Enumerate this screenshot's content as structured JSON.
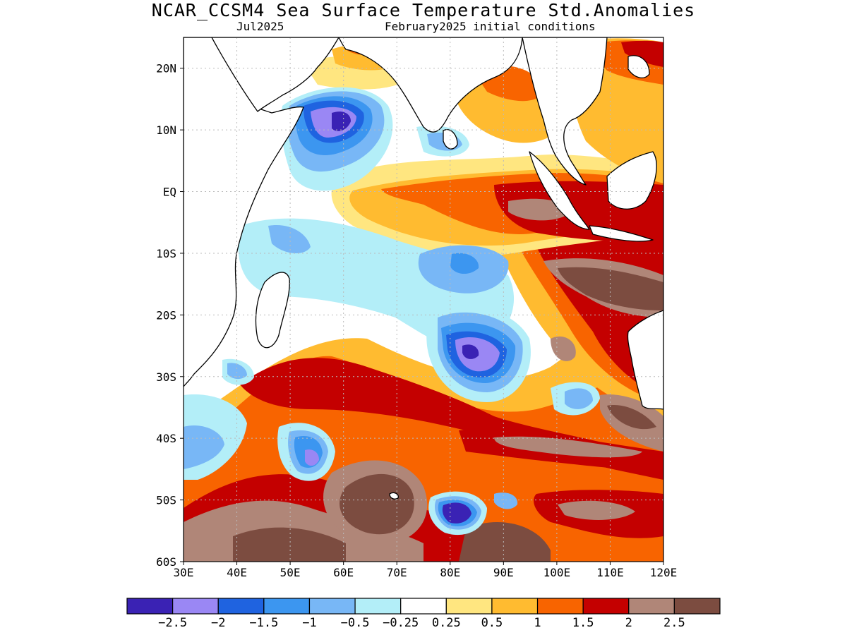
{
  "title": "NCAR_CCSM4 Sea Surface Temperature Std.Anomalies",
  "subtitle_left": "Jul2025",
  "subtitle_right": "February2025 initial conditions",
  "map": {
    "lon_labels": [
      "30E",
      "40E",
      "50E",
      "60E",
      "70E",
      "80E",
      "90E",
      "100E",
      "110E",
      "120E"
    ],
    "lat_labels": [
      "20N",
      "10N",
      "EQ",
      "10S",
      "20S",
      "30S",
      "40S",
      "50S",
      "60S"
    ]
  },
  "colorbar": {
    "colors": [
      "#3a22b4",
      "#9a87f4",
      "#1f63e0",
      "#3c96f0",
      "#78b7f6",
      "#b3eef8",
      "#ffffff",
      "#ffe680",
      "#ffbb30",
      "#f86400",
      "#c40000",
      "#b08678",
      "#7c4c40"
    ],
    "levels": [
      "-2.5",
      "-2",
      "-1.5",
      "-1",
      "-0.5",
      "-0.25",
      "0.25",
      "0.5",
      "1",
      "1.5",
      "2",
      "2.5"
    ]
  },
  "colors": {
    "land": "#ffffff",
    "coast": "#000000",
    "grid": "#bbbbbb"
  }
}
